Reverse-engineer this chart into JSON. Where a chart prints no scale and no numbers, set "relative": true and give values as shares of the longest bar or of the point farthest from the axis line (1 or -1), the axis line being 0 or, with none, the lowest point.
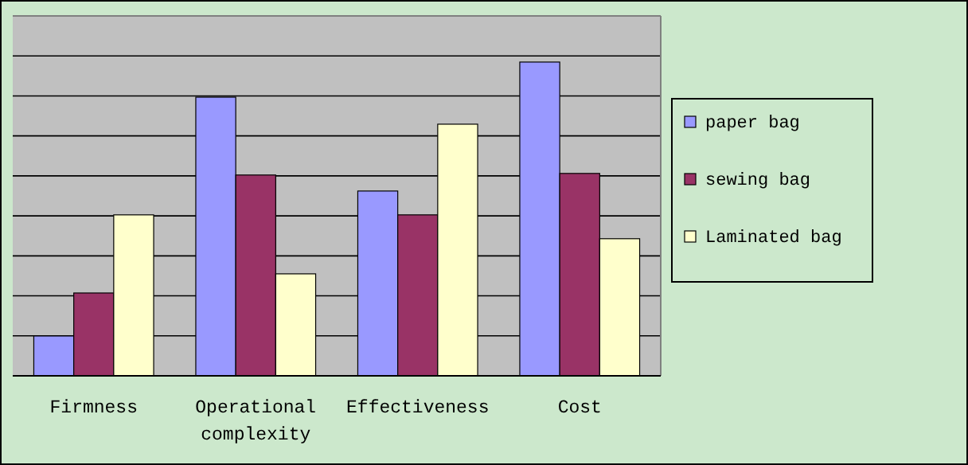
{
  "chart_data": {
    "type": "bar",
    "relative": true,
    "grid": "y",
    "legend": "right",
    "categories": [
      "Firmness",
      "Operational complexity",
      "Effectiveness",
      "Cost"
    ],
    "series": [
      {
        "name": "paper bag",
        "color": "#9999ff",
        "values": [
          0.127,
          0.888,
          0.589,
          1
        ]
      },
      {
        "name": "sewing bag",
        "color": "#993366",
        "values": [
          0.264,
          0.64,
          0.513,
          0.645
        ]
      },
      {
        "name": "Laminated bag",
        "color": "#ffffcc",
        "values": [
          0.513,
          0.325,
          0.802,
          0.437
        ]
      }
    ]
  }
}
